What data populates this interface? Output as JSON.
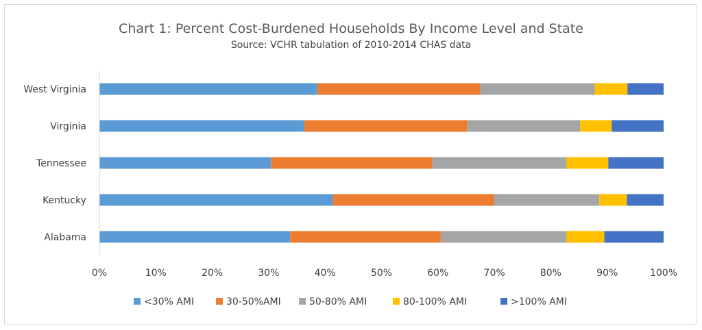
{
  "chart_data": {
    "type": "bar",
    "orientation": "horizontal",
    "stacked": "percent",
    "title": "Chart 1: Percent Cost-Burdened Households By Income Level and State",
    "subtitle": "Source: VCHR tabulation of 2010-2014 CHAS data",
    "categories": [
      "West Virginia",
      "Virginia",
      "Tennessee",
      "Kentucky",
      "Alabama"
    ],
    "series": [
      {
        "name": "<30% AMI",
        "color": "#5b9bd5",
        "values": [
          38.6,
          36.3,
          30.4,
          41.4,
          33.8
        ]
      },
      {
        "name": "30-50%AMI",
        "color": "#ed7d31",
        "values": [
          28.9,
          28.9,
          28.6,
          28.6,
          26.7
        ]
      },
      {
        "name": "50-80% AMI",
        "color": "#a5a5a5",
        "values": [
          20.3,
          20.0,
          23.8,
          18.6,
          22.3
        ]
      },
      {
        "name": "80-100% AMI",
        "color": "#ffc000",
        "values": [
          5.8,
          5.6,
          7.4,
          4.9,
          6.7
        ]
      },
      {
        "name": ">100% AMI",
        "color": "#4472c4",
        "values": [
          6.4,
          9.2,
          9.8,
          6.5,
          10.5
        ]
      }
    ],
    "xlim": [
      0,
      100
    ],
    "xticks": [
      "0%",
      "10%",
      "20%",
      "30%",
      "40%",
      "50%",
      "60%",
      "70%",
      "80%",
      "90%",
      "100%"
    ],
    "grid": false,
    "legend_position": "bottom"
  }
}
